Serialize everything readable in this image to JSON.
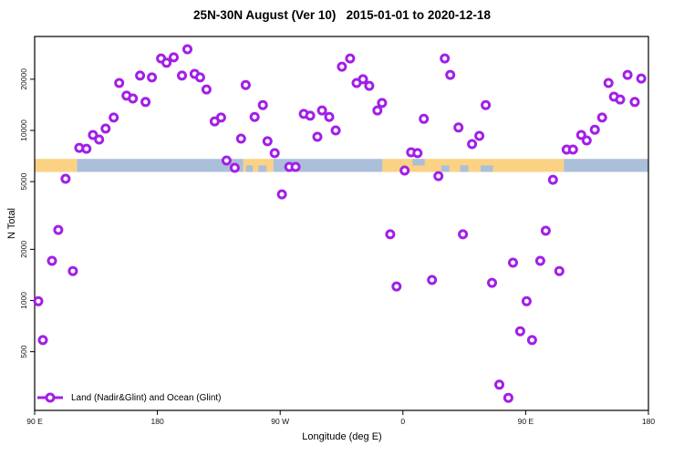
{
  "title": "25N-30N August (Ver 10)   2015-01-01 to 2020-12-18",
  "legend": {
    "label": "Land (Nadir&Glint) and Ocean (Glint)"
  },
  "colors": {
    "point": "#A21FE6",
    "point_fill": "#FFFFFF",
    "land": "#FBD284",
    "ocean": "#ABBFDA",
    "axis": "#000000",
    "background": "#FFFFFF"
  },
  "chart_data": {
    "type": "scatter",
    "title": "25N-30N August (Ver 10)   2015-01-01 to 2020-12-18",
    "xlabel": "Longitude (deg E)",
    "ylabel": "N Total",
    "legend_position": "bottom-left",
    "grid": false,
    "x_axis": {
      "min": 90,
      "max": 540,
      "ticks": [
        {
          "deg": 90,
          "label": "90 E"
        },
        {
          "deg": 180,
          "label": "180"
        },
        {
          "deg": 270,
          "label": "90 W"
        },
        {
          "deg": 360,
          "label": "0"
        },
        {
          "deg": 450,
          "label": "90 E"
        },
        {
          "deg": 540,
          "label": "180"
        }
      ]
    },
    "y_axis": {
      "scale": "log10",
      "range": [
        230,
        35000
      ],
      "ticks": [
        500,
        1000,
        2000,
        5000,
        10000,
        20000
      ]
    },
    "surface_band": {
      "value_top": 6800,
      "value_bottom": 5700,
      "segments": [
        {
          "from": 90,
          "to": 121,
          "surface": "land"
        },
        {
          "from": 121,
          "to": 243,
          "surface": "ocean"
        },
        {
          "from": 243,
          "to": 265,
          "surface": "land"
        },
        {
          "from": 265,
          "to": 345,
          "surface": "ocean"
        },
        {
          "from": 345,
          "to": 478,
          "surface": "land"
        },
        {
          "from": 478,
          "to": 540,
          "surface": "ocean"
        }
      ],
      "ocean_patches": [
        {
          "from": 245,
          "to": 250,
          "half": "bottom"
        },
        {
          "from": 254,
          "to": 260,
          "half": "bottom"
        },
        {
          "from": 367,
          "to": 376,
          "half": "top"
        },
        {
          "from": 388,
          "to": 394,
          "half": "bottom"
        },
        {
          "from": 402,
          "to": 408,
          "half": "bottom"
        },
        {
          "from": 417,
          "to": 426,
          "half": "bottom"
        }
      ]
    },
    "series": [
      {
        "name": "Land (Nadir&Glint) and Ocean (Glint)",
        "points": [
          [
            122.7,
            7900
          ],
          [
            128,
            7800
          ],
          [
            132.7,
            9400
          ],
          [
            137.3,
            8840
          ],
          [
            142,
            10250
          ],
          [
            148,
            11900
          ],
          [
            152,
            19000
          ],
          [
            157.3,
            16000
          ],
          [
            162,
            15400
          ],
          [
            167.3,
            21000
          ],
          [
            171.3,
            14700
          ],
          [
            176,
            20500
          ],
          [
            182.7,
            26500
          ],
          [
            186.7,
            25000
          ],
          [
            192,
            26900
          ],
          [
            198,
            21000
          ],
          [
            202,
            30000
          ],
          [
            207.3,
            21500
          ],
          [
            211.3,
            20500
          ],
          [
            216,
            17400
          ],
          [
            222,
            11300
          ],
          [
            226.7,
            11900
          ],
          [
            230.7,
            6650
          ],
          [
            236.7,
            6030
          ],
          [
            241.3,
            8950
          ],
          [
            244.7,
            18500
          ],
          [
            251.3,
            12000
          ],
          [
            257.3,
            14100
          ],
          [
            260.7,
            8630
          ],
          [
            266,
            7350
          ],
          [
            271.3,
            4210
          ],
          [
            276.7,
            6100
          ],
          [
            281.3,
            6100
          ],
          [
            287.3,
            12500
          ],
          [
            292,
            12200
          ],
          [
            297.3,
            9170
          ],
          [
            300.7,
            13100
          ],
          [
            306,
            12000
          ],
          [
            310.7,
            10000
          ],
          [
            315.3,
            23700
          ],
          [
            321.3,
            26500
          ],
          [
            326,
            19000
          ],
          [
            330.7,
            20000
          ],
          [
            335.3,
            18300
          ],
          [
            341.3,
            13100
          ],
          [
            344.7,
            14500
          ],
          [
            350.7,
            2450
          ],
          [
            355.3,
            1210
          ],
          [
            361.3,
            5810
          ],
          [
            366,
            7440
          ],
          [
            370.7,
            7350
          ],
          [
            375.3,
            11700
          ],
          [
            381.3,
            1320
          ],
          [
            386,
            5390
          ],
          [
            390.7,
            26500
          ],
          [
            394.7,
            21200
          ],
          [
            400.7,
            10400
          ],
          [
            404,
            2450
          ],
          [
            410.7,
            8310
          ],
          [
            416,
            9290
          ],
          [
            420.7,
            14100
          ],
          [
            425.3,
            1270
          ],
          [
            430.7,
            320
          ],
          [
            437.3,
            268
          ],
          [
            440.7,
            1670
          ],
          [
            446,
            660
          ],
          [
            450.7,
            990
          ],
          [
            454.7,
            585
          ],
          [
            460.7,
            1710
          ],
          [
            464.7,
            2570
          ],
          [
            470,
            5130
          ],
          [
            474.7,
            1490
          ],
          [
            480,
            7720
          ],
          [
            484.7,
            7720
          ],
          [
            490.7,
            9400
          ],
          [
            494.7,
            8730
          ],
          [
            500.7,
            10100
          ],
          [
            506,
            11900
          ],
          [
            510.7,
            19000
          ],
          [
            514.7,
            15800
          ],
          [
            519.3,
            15200
          ],
          [
            524.7,
            21200
          ],
          [
            530,
            14700
          ],
          [
            534.7,
            20200
          ],
          [
            92.7,
            990
          ],
          [
            96,
            585
          ],
          [
            102.7,
            1710
          ],
          [
            107.3,
            2600
          ],
          [
            112.7,
            5200
          ],
          [
            118,
            1490
          ]
        ]
      }
    ]
  }
}
